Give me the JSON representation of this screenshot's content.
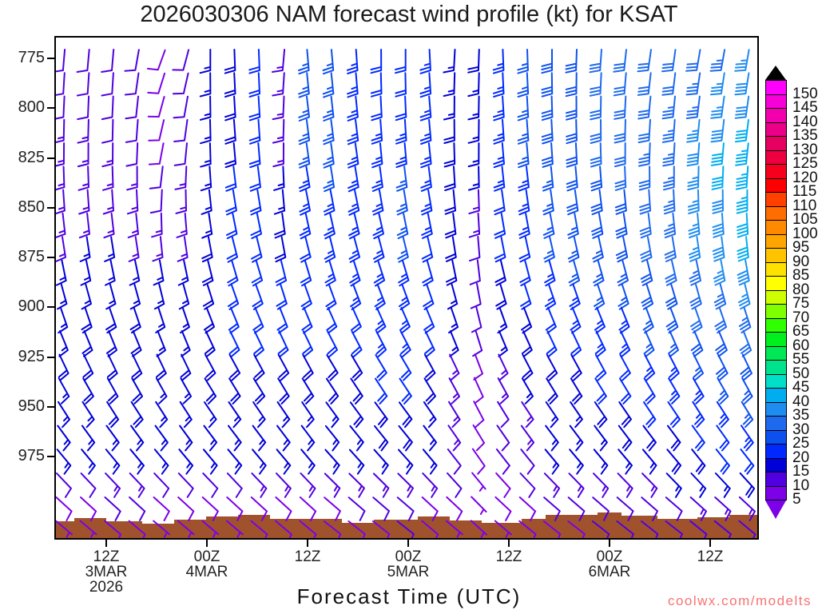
{
  "title": "2026030306 NAM forecast wind profile (kt) for KSAT",
  "watermark": "coolwx.com/modelts",
  "chart_data": {
    "type": "wind-barb-time-height-profile",
    "model": "NAM",
    "init_time": "2026030306",
    "station": "KSAT",
    "units": "kt",
    "xlabel": "Forecast Time (UTC)",
    "ylabel": "",
    "y_ticks": [
      775,
      800,
      825,
      850,
      875,
      900,
      925,
      950,
      975
    ],
    "x_ticks": [
      {
        "time": "12Z",
        "date": "3MAR",
        "year": "2026"
      },
      {
        "time": "00Z",
        "date": "4MAR",
        "year": ""
      },
      {
        "time": "12Z",
        "date": "",
        "year": ""
      },
      {
        "time": "00Z",
        "date": "5MAR",
        "year": ""
      },
      {
        "time": "12Z",
        "date": "",
        "year": ""
      },
      {
        "time": "00Z",
        "date": "6MAR",
        "year": ""
      },
      {
        "time": "12Z",
        "date": "",
        "year": ""
      }
    ],
    "colorbar": {
      "values": [
        150,
        145,
        140,
        135,
        130,
        125,
        120,
        115,
        110,
        105,
        100,
        95,
        90,
        85,
        80,
        75,
        70,
        65,
        60,
        55,
        50,
        45,
        40,
        35,
        30,
        25,
        20,
        15,
        10,
        5
      ],
      "colors": [
        "#FF00FF",
        "#F800D8",
        "#F200AE",
        "#EC0087",
        "#E60060",
        "#EE0040",
        "#F70020",
        "#FF0000",
        "#FF4000",
        "#FF6C00",
        "#FF8A00",
        "#FFA500",
        "#FFC300",
        "#FFE100",
        "#FFFF00",
        "#CDFF00",
        "#7FFF00",
        "#2FFF00",
        "#00F01E",
        "#00E855",
        "#00E38D",
        "#00E0C8",
        "#00AEF0",
        "#1E8CF0",
        "#1E6AEE",
        "#0C50F0",
        "#0028FF",
        "#0000D8",
        "#5000E0",
        "#7C00E8"
      ],
      "over_color": "#000000",
      "under_color": "#7C00E8"
    },
    "anchor_pressures": [
      775,
      825,
      875,
      925,
      975,
      1005
    ],
    "columns": [
      {
        "label": "06Z 3MAR",
        "speeds": [
          12,
          13,
          15,
          18,
          15,
          7
        ],
        "dirs": [
          185,
          180,
          170,
          155,
          140,
          130
        ]
      },
      {
        "label": "09Z 3MAR",
        "speeds": [
          12,
          13,
          16,
          20,
          15,
          7
        ],
        "dirs": [
          185,
          180,
          170,
          155,
          140,
          130
        ]
      },
      {
        "label": "12Z 3MAR",
        "speeds": [
          10,
          13,
          16,
          20,
          16,
          8
        ],
        "dirs": [
          185,
          180,
          170,
          155,
          140,
          130
        ]
      },
      {
        "label": "15Z 3MAR",
        "speeds": [
          10,
          12,
          15,
          20,
          16,
          8
        ],
        "dirs": [
          190,
          182,
          170,
          155,
          140,
          130
        ]
      },
      {
        "label": "18Z 3MAR",
        "speeds": [
          8,
          10,
          15,
          18,
          15,
          6
        ],
        "dirs": [
          200,
          190,
          172,
          155,
          140,
          130
        ]
      },
      {
        "label": "21Z 3MAR",
        "speeds": [
          10,
          12,
          15,
          18,
          15,
          6
        ],
        "dirs": [
          195,
          185,
          170,
          155,
          140,
          130
        ]
      },
      {
        "label": "00Z 4MAR",
        "speeds": [
          15,
          15,
          18,
          20,
          15,
          7
        ],
        "dirs": [
          180,
          178,
          168,
          152,
          140,
          130
        ]
      },
      {
        "label": "03Z 4MAR",
        "speeds": [
          18,
          20,
          20,
          20,
          15,
          7
        ],
        "dirs": [
          178,
          175,
          165,
          152,
          140,
          130
        ]
      },
      {
        "label": "06Z 4MAR",
        "speeds": [
          20,
          22,
          22,
          20,
          15,
          8
        ],
        "dirs": [
          178,
          175,
          165,
          152,
          140,
          130
        ]
      },
      {
        "label": "09Z 4MAR",
        "speeds": [
          13,
          15,
          20,
          20,
          15,
          8
        ],
        "dirs": [
          185,
          180,
          168,
          152,
          140,
          130
        ]
      },
      {
        "label": "12Z 4MAR",
        "speeds": [
          25,
          25,
          22,
          20,
          15,
          8
        ],
        "dirs": [
          175,
          172,
          165,
          152,
          140,
          130
        ]
      },
      {
        "label": "15Z 4MAR",
        "speeds": [
          25,
          26,
          23,
          20,
          15,
          8
        ],
        "dirs": [
          175,
          172,
          165,
          150,
          138,
          128
        ]
      },
      {
        "label": "18Z 4MAR",
        "speeds": [
          23,
          25,
          24,
          20,
          16,
          9
        ],
        "dirs": [
          176,
          172,
          164,
          150,
          138,
          128
        ]
      },
      {
        "label": "21Z 4MAR",
        "speeds": [
          20,
          24,
          25,
          22,
          17,
          9
        ],
        "dirs": [
          180,
          174,
          164,
          150,
          138,
          128
        ]
      },
      {
        "label": "00Z 5MAR",
        "speeds": [
          20,
          25,
          25,
          22,
          17,
          10
        ],
        "dirs": [
          180,
          175,
          165,
          150,
          138,
          128
        ]
      },
      {
        "label": "03Z 5MAR",
        "speeds": [
          24,
          25,
          22,
          20,
          15,
          8
        ],
        "dirs": [
          177,
          174,
          166,
          152,
          140,
          130
        ]
      },
      {
        "label": "06Z 5MAR",
        "speeds": [
          15,
          20,
          18,
          15,
          12,
          7
        ],
        "dirs": [
          183,
          178,
          170,
          155,
          142,
          130
        ]
      },
      {
        "label": "09Z 5MAR",
        "speeds": [
          18,
          16,
          12,
          10,
          8,
          5
        ],
        "dirs": [
          182,
          180,
          175,
          160,
          145,
          132
        ]
      },
      {
        "label": "12Z 5MAR",
        "speeds": [
          25,
          24,
          20,
          15,
          10,
          7
        ],
        "dirs": [
          178,
          175,
          168,
          155,
          142,
          130
        ]
      },
      {
        "label": "15Z 5MAR",
        "speeds": [
          26,
          25,
          22,
          18,
          12,
          8
        ],
        "dirs": [
          178,
          175,
          167,
          153,
          141,
          129
        ]
      },
      {
        "label": "18Z 5MAR",
        "speeds": [
          28,
          28,
          25,
          20,
          15,
          9
        ],
        "dirs": [
          180,
          176,
          166,
          152,
          140,
          128
        ]
      },
      {
        "label": "21Z 5MAR",
        "speeds": [
          28,
          29,
          26,
          20,
          15,
          9
        ],
        "dirs": [
          182,
          177,
          166,
          152,
          140,
          128
        ]
      },
      {
        "label": "00Z 6MAR",
        "speeds": [
          30,
          30,
          27,
          22,
          15,
          10
        ],
        "dirs": [
          184,
          178,
          166,
          152,
          140,
          128
        ]
      },
      {
        "label": "03Z 6MAR",
        "speeds": [
          30,
          31,
          28,
          22,
          16,
          10
        ],
        "dirs": [
          186,
          180,
          167,
          152,
          140,
          128
        ]
      },
      {
        "label": "06Z 6MAR",
        "speeds": [
          30,
          33,
          30,
          24,
          17,
          10
        ],
        "dirs": [
          188,
          182,
          168,
          153,
          140,
          128
        ]
      },
      {
        "label": "09Z 6MAR",
        "speeds": [
          31,
          35,
          32,
          25,
          18,
          10
        ],
        "dirs": [
          188,
          183,
          169,
          153,
          140,
          128
        ]
      },
      {
        "label": "12Z 6MAR",
        "speeds": [
          32,
          38,
          35,
          27,
          19,
          11
        ],
        "dirs": [
          190,
          184,
          170,
          154,
          141,
          129
        ]
      },
      {
        "label": "15Z 6MAR",
        "speeds": [
          33,
          41,
          38,
          28,
          20,
          11
        ],
        "dirs": [
          190,
          185,
          171,
          154,
          141,
          129
        ]
      },
      {
        "label": "18Z 6MAR",
        "speeds": [
          35,
          45,
          40,
          30,
          21,
          12
        ],
        "dirs": [
          190,
          186,
          172,
          155,
          142,
          130
        ]
      }
    ],
    "n_rows": 21,
    "row_pressure_start": 776,
    "row_pressure_step": 11.65,
    "terrain_color": "#A0522D",
    "terrain": [
      [
        0,
        607
      ],
      [
        25,
        607
      ],
      [
        25,
        603
      ],
      [
        65,
        603
      ],
      [
        65,
        607
      ],
      [
        110,
        607
      ],
      [
        110,
        610
      ],
      [
        150,
        610
      ],
      [
        150,
        605
      ],
      [
        190,
        605
      ],
      [
        190,
        601
      ],
      [
        230,
        601
      ],
      [
        230,
        599
      ],
      [
        270,
        599
      ],
      [
        270,
        604
      ],
      [
        360,
        604
      ],
      [
        360,
        609
      ],
      [
        400,
        609
      ],
      [
        400,
        605
      ],
      [
        455,
        605
      ],
      [
        455,
        601
      ],
      [
        495,
        601
      ],
      [
        495,
        606
      ],
      [
        535,
        606
      ],
      [
        535,
        609
      ],
      [
        585,
        609
      ],
      [
        585,
        604
      ],
      [
        615,
        604
      ],
      [
        615,
        599
      ],
      [
        680,
        599
      ],
      [
        680,
        596
      ],
      [
        710,
        596
      ],
      [
        710,
        600
      ],
      [
        755,
        600
      ],
      [
        755,
        604
      ],
      [
        805,
        604
      ],
      [
        805,
        602
      ],
      [
        845,
        602
      ],
      [
        845,
        599
      ],
      [
        878,
        599
      ]
    ]
  },
  "layout_colors": {
    "frame": "#000000",
    "background": "#ffffff"
  }
}
